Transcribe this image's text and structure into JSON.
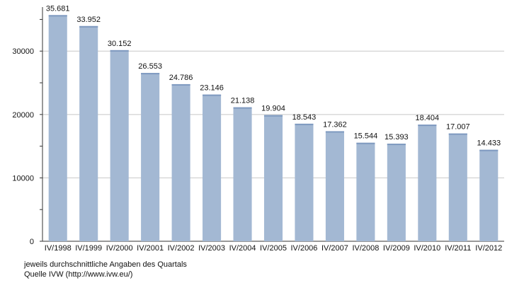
{
  "chart_data": {
    "type": "bar",
    "categories": [
      "IV/1998",
      "IV/1999",
      "IV/2000",
      "IV/2001",
      "IV/2002",
      "IV/2003",
      "IV/2004",
      "IV/2005",
      "IV/2006",
      "IV/2007",
      "IV/2008",
      "IV/2009",
      "IV/2010",
      "IV/2011",
      "IV/2012"
    ],
    "values": [
      35681,
      33952,
      30152,
      26553,
      24786,
      23146,
      21138,
      19904,
      18543,
      17362,
      15544,
      15393,
      18404,
      17007,
      14433
    ],
    "value_labels": [
      "35.681",
      "33.952",
      "30.152",
      "26.553",
      "24.786",
      "23.146",
      "21.138",
      "19.904",
      "18.543",
      "17.362",
      "15.544",
      "15.393",
      "18.404",
      "17.007",
      "14.433"
    ],
    "yticks": [
      0,
      10000,
      20000,
      30000
    ],
    "ylim": [
      0,
      36500
    ],
    "grid": true,
    "bar_color": "#a3b8d3",
    "bar_top_color": "#7f9ac0",
    "grid_color": "#c8c8c8"
  },
  "footnote": {
    "line1": "jeweils durchschnittliche Angaben des Quartals",
    "line2": "Quelle IVW (http://www.ivw.eu/)"
  }
}
